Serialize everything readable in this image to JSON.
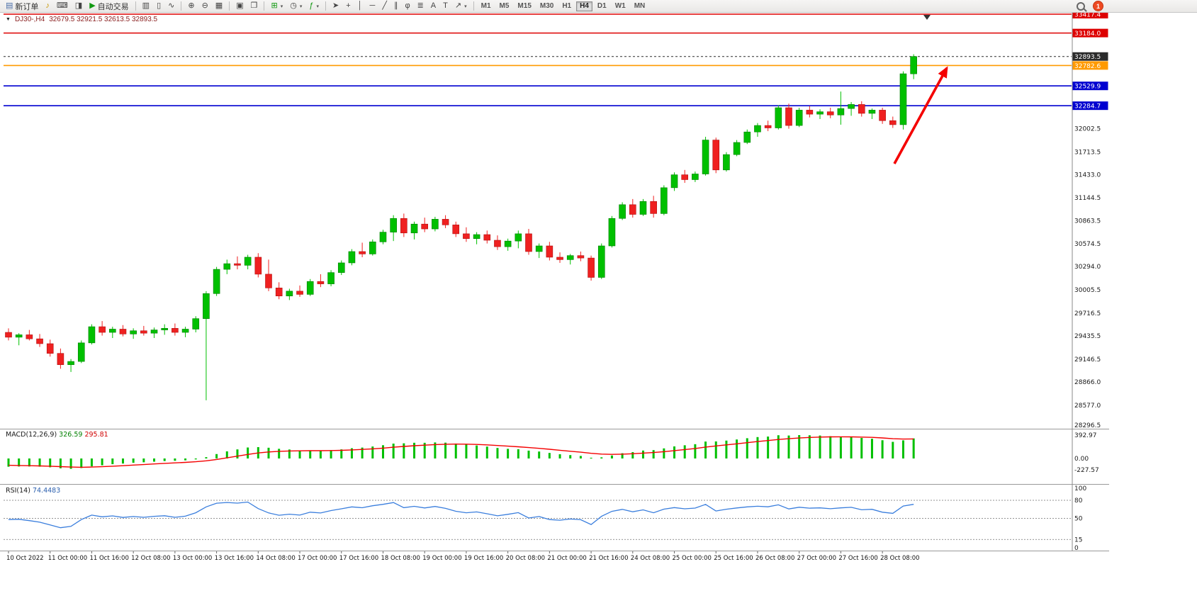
{
  "toolbar": {
    "new_order_label": "新订单",
    "auto_trading_label": "自动交易",
    "timeframes": [
      "M1",
      "M5",
      "M15",
      "M30",
      "H1",
      "H4",
      "D1",
      "W1",
      "MN"
    ],
    "active_timeframe": "H4",
    "notification_count": "1"
  },
  "icons": {
    "new-order": "▤",
    "horn": "♪",
    "print": "⌨",
    "data-window": "◨",
    "auto-trading": "▶",
    "bars-chart": "▥",
    "candles-chart": "▯",
    "line-chart": "∿",
    "zoom-in": "⊕",
    "zoom-out": "⊖",
    "tile-windows": "▦",
    "arrange-windows": "▣",
    "cascade-windows": "❐",
    "new-chart": "⊞",
    "profiles": "◷",
    "indicators": "ƒ",
    "cursor": "➤",
    "crosshair": "+",
    "vertical-line": "│",
    "horizontal-line": "─",
    "trendline": "╱",
    "equidistant-channel": "∥",
    "fibonacci": "φ",
    "grid": "≣",
    "text": "A",
    "text-label": "T",
    "arrow-tools": "↗",
    "dropdown": "▾",
    "search": "css-magnifier"
  },
  "chart": {
    "title_symbol": "DJ30-,H4",
    "title_ohlc": "32679.5 32921.5 32613.5 32893.5"
  },
  "chart_data": {
    "type": "candlestick",
    "symbol": "DJ30-",
    "timeframe": "H4",
    "ohlc_current": {
      "open": 32679.5,
      "high": 32921.5,
      "low": 32613.5,
      "close": 32893.5
    },
    "colors": {
      "up": "#00c000",
      "up_edge": "#007d00",
      "down": "#ef2020",
      "down_edge": "#b01010",
      "background": "#ffffff"
    },
    "levels": [
      {
        "price": 33417.4,
        "label": "33417.4",
        "color": "#dd0000",
        "style": "solid"
      },
      {
        "price": 33184.0,
        "label": "33184.0",
        "color": "#dd0000",
        "style": "solid"
      },
      {
        "price": 32893.5,
        "label": "32893.5",
        "color": "#2b2b2b",
        "style": "dashed",
        "role": "current-price"
      },
      {
        "price": 32782.6,
        "label": "32782.6",
        "color": "#ff9a00",
        "style": "solid"
      },
      {
        "price": 32529.9,
        "label": "32529.9",
        "color": "#0000d0",
        "style": "solid"
      },
      {
        "price": 32284.7,
        "label": "32284.7",
        "color": "#0000d0",
        "style": "solid"
      }
    ],
    "y_ticks": [
      32002.5,
      31713.5,
      31433.0,
      31144.5,
      30863.5,
      30574.5,
      30294.0,
      30005.5,
      29716.5,
      29435.5,
      29146.5,
      28866.0,
      28577.0,
      28296.5
    ],
    "time_labels": [
      "10 Oct 2022",
      "11 Oct 00:00",
      "11 Oct 16:00",
      "12 Oct 08:00",
      "13 Oct 00:00",
      "13 Oct 16:00",
      "14 Oct 08:00",
      "17 Oct 00:00",
      "17 Oct 16:00",
      "18 Oct 08:00",
      "19 Oct 00:00",
      "19 Oct 16:00",
      "20 Oct 08:00",
      "21 Oct 00:00",
      "21 Oct 16:00",
      "24 Oct 08:00",
      "25 Oct 00:00",
      "25 Oct 16:00",
      "26 Oct 08:00",
      "27 Oct 00:00",
      "27 Oct 16:00",
      "28 Oct 08:00"
    ],
    "label_every": 4,
    "candles": [
      [
        29480,
        29530,
        29380,
        29420
      ],
      [
        29420,
        29470,
        29320,
        29450
      ],
      [
        29450,
        29510,
        29380,
        29400
      ],
      [
        29400,
        29460,
        29300,
        29340
      ],
      [
        29340,
        29390,
        29180,
        29220
      ],
      [
        29220,
        29280,
        29030,
        29080
      ],
      [
        29080,
        29150,
        28990,
        29120
      ],
      [
        29120,
        29380,
        29100,
        29350
      ],
      [
        29350,
        29580,
        29330,
        29550
      ],
      [
        29550,
        29620,
        29440,
        29480
      ],
      [
        29480,
        29550,
        29410,
        29520
      ],
      [
        29520,
        29570,
        29430,
        29460
      ],
      [
        29460,
        29530,
        29400,
        29500
      ],
      [
        29500,
        29560,
        29440,
        29470
      ],
      [
        29470,
        29540,
        29410,
        29510
      ],
      [
        29510,
        29580,
        29450,
        29530
      ],
      [
        29530,
        29590,
        29440,
        29480
      ],
      [
        29480,
        29550,
        29420,
        29520
      ],
      [
        29520,
        29680,
        29480,
        29650
      ],
      [
        29650,
        29990,
        28640,
        29960
      ],
      [
        29960,
        30290,
        29930,
        30260
      ],
      [
        30260,
        30380,
        30200,
        30330
      ],
      [
        30330,
        30420,
        30260,
        30310
      ],
      [
        30310,
        30440,
        30260,
        30410
      ],
      [
        30410,
        30460,
        30160,
        30200
      ],
      [
        30200,
        30380,
        29990,
        30030
      ],
      [
        30030,
        30100,
        29890,
        29930
      ],
      [
        29930,
        30020,
        29880,
        29990
      ],
      [
        29990,
        30060,
        29920,
        29950
      ],
      [
        29950,
        30140,
        29930,
        30110
      ],
      [
        30110,
        30200,
        30040,
        30080
      ],
      [
        30080,
        30250,
        30050,
        30220
      ],
      [
        30220,
        30370,
        30190,
        30340
      ],
      [
        30340,
        30510,
        30310,
        30480
      ],
      [
        30480,
        30590,
        30410,
        30450
      ],
      [
        30450,
        30630,
        30430,
        30600
      ],
      [
        30600,
        30750,
        30570,
        30720
      ],
      [
        30720,
        30930,
        30610,
        30890
      ],
      [
        30890,
        30950,
        30660,
        30710
      ],
      [
        30710,
        30850,
        30630,
        30820
      ],
      [
        30820,
        30900,
        30720,
        30760
      ],
      [
        30760,
        30910,
        30730,
        30880
      ],
      [
        30880,
        30930,
        30770,
        30810
      ],
      [
        30810,
        30850,
        30660,
        30700
      ],
      [
        30700,
        30780,
        30600,
        30640
      ],
      [
        30640,
        30720,
        30570,
        30690
      ],
      [
        30690,
        30740,
        30580,
        30620
      ],
      [
        30620,
        30680,
        30500,
        30540
      ],
      [
        30540,
        30640,
        30490,
        30610
      ],
      [
        30610,
        30740,
        30520,
        30700
      ],
      [
        30700,
        30760,
        30440,
        30480
      ],
      [
        30480,
        30580,
        30400,
        30550
      ],
      [
        30550,
        30600,
        30370,
        30410
      ],
      [
        30410,
        30470,
        30340,
        30380
      ],
      [
        30380,
        30450,
        30320,
        30430
      ],
      [
        30430,
        30480,
        30360,
        30400
      ],
      [
        30400,
        30430,
        30120,
        30160
      ],
      [
        30160,
        30580,
        30140,
        30550
      ],
      [
        30550,
        30920,
        30530,
        30890
      ],
      [
        30890,
        31090,
        30870,
        31060
      ],
      [
        31060,
        31130,
        30900,
        30940
      ],
      [
        30940,
        31130,
        30920,
        31100
      ],
      [
        31100,
        31170,
        30900,
        30950
      ],
      [
        30950,
        31300,
        30930,
        31270
      ],
      [
        31270,
        31460,
        31230,
        31430
      ],
      [
        31430,
        31490,
        31330,
        31370
      ],
      [
        31370,
        31470,
        31340,
        31440
      ],
      [
        31440,
        31900,
        31420,
        31860
      ],
      [
        31860,
        31890,
        31450,
        31490
      ],
      [
        31490,
        31710,
        31470,
        31680
      ],
      [
        31680,
        31860,
        31660,
        31830
      ],
      [
        31830,
        31990,
        31810,
        31960
      ],
      [
        31960,
        32070,
        31900,
        32040
      ],
      [
        32040,
        32100,
        31970,
        32010
      ],
      [
        32010,
        32290,
        31990,
        32260
      ],
      [
        32260,
        32310,
        32000,
        32040
      ],
      [
        32040,
        32260,
        32020,
        32230
      ],
      [
        32230,
        32280,
        32140,
        32180
      ],
      [
        32180,
        32240,
        32120,
        32210
      ],
      [
        32210,
        32260,
        32130,
        32170
      ],
      [
        32170,
        32460,
        32050,
        32250
      ],
      [
        32250,
        32330,
        32160,
        32300
      ],
      [
        32300,
        32340,
        32150,
        32190
      ],
      [
        32190,
        32250,
        32120,
        32230
      ],
      [
        32230,
        32260,
        32060,
        32100
      ],
      [
        32100,
        32150,
        32010,
        32050
      ],
      [
        32050,
        32710,
        31990,
        32680
      ],
      [
        32679.5,
        32921.5,
        32613.5,
        32893.5
      ]
    ],
    "macd": {
      "label": "MACD(12,26,9)",
      "main_value": "326.59",
      "signal_value": "295.81",
      "axis": [
        "392.97",
        "0.00",
        "-227.57"
      ],
      "histogram_color": "#00c000",
      "signal_color": "#f40000"
    },
    "rsi": {
      "label": "RSI(14)",
      "value": "74.4483",
      "axis": [
        "100",
        "80",
        "50",
        "15",
        "0"
      ],
      "level_lines": [
        80,
        50,
        15
      ],
      "line_color": "#3a7edd"
    },
    "annotation_arrow": {
      "color": "#f40000",
      "description": "red up-right arrow pointing at breakout above orange level"
    }
  }
}
